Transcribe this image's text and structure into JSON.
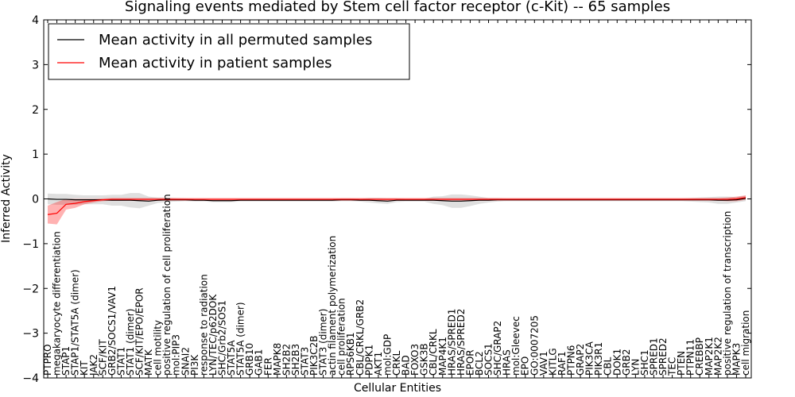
{
  "chart_data": {
    "type": "line",
    "title": "Signaling events mediated by Stem cell factor receptor (c-Kit) -- 65 samples",
    "xlabel": "Cellular Entities",
    "ylabel": "Inferred Activity",
    "ylim": [
      -4,
      4
    ],
    "yticks": [
      "4",
      "3",
      "2",
      "1",
      "0",
      "−1",
      "−2",
      "−3",
      "−4"
    ],
    "ytick_values": [
      4,
      3,
      2,
      1,
      0,
      -1,
      -2,
      -3,
      -4
    ],
    "legend_position": "top-left",
    "categories": [
      "PTPRO",
      "megakaryocyte differentiation",
      "STAP1",
      "STAP1/STAT5A (dimer)",
      "KIT",
      "JAK2",
      "SCF/KIT",
      "GRB2/SOCS1/VAV1",
      "STAT1",
      "STAT1 (dimer)",
      "SCF/KIT/EPO/EPOR",
      "MATK",
      "cell motility",
      "positive regulation of cell proliferation",
      "mol:PIP3",
      "SNAI2",
      "PI3K",
      "response to radiation",
      "LYN/TEC/p62DOK",
      "SHC/Grb2/SOS1",
      "STAT5A",
      "STAT5A (dimer)",
      "GRB10",
      "GAB1",
      "FER",
      "MAPK8",
      "SH2B2",
      "SH2B3",
      "STAT3",
      "PIK3C2B",
      "STAT3 (dimer)",
      "actin filament polymerization",
      "cell proliferation",
      "RPS6KB1",
      "CBL/CRKL/GRB2",
      "PDPK1",
      "AKT1",
      "mol:GDP",
      "CRKL",
      "BAD",
      "FOXO3",
      "GSK3B",
      "CBL/CRKL",
      "MAP4K1",
      "HRAS/SPRED1",
      "HRAS/SPRED2",
      "EPOR",
      "BCL2",
      "SOCS1",
      "SHC/GRAP2",
      "HRAS",
      "mol:Gleevec",
      "EPO",
      "GO:0007205",
      "VAV1",
      "KITLG",
      "RAF1",
      "PTPN6",
      "GRAP2",
      "PIK3CA",
      "PIK3R1",
      "CBL",
      "DOK1",
      "GRB2",
      "LYN",
      "SHC1",
      "SPRED1",
      "SPRED2",
      "TEC",
      "PTEN",
      "PTPN11",
      "CREBBP",
      "MAP2K1",
      "MAP2K2",
      "positive regulation of transcription",
      "MAPK3",
      "cell migration"
    ],
    "series": [
      {
        "name": "Mean activity in all permuted samples",
        "color": "#000000",
        "values": [
          0,
          -0.01,
          -0.01,
          -0.02,
          -0.02,
          -0.02,
          -0.02,
          -0.03,
          -0.03,
          -0.03,
          -0.04,
          -0.05,
          -0.03,
          -0.02,
          -0.02,
          -0.02,
          -0.03,
          -0.03,
          -0.04,
          -0.04,
          -0.04,
          -0.03,
          -0.03,
          -0.03,
          -0.03,
          -0.03,
          -0.03,
          -0.03,
          -0.03,
          -0.03,
          -0.03,
          -0.03,
          -0.02,
          -0.02,
          -0.03,
          -0.03,
          -0.04,
          -0.05,
          -0.03,
          -0.03,
          -0.03,
          -0.03,
          -0.03,
          -0.04,
          -0.05,
          -0.05,
          -0.04,
          -0.03,
          -0.03,
          -0.02,
          -0.02,
          -0.02,
          -0.02,
          -0.02,
          -0.02,
          -0.02,
          -0.02,
          -0.02,
          -0.02,
          -0.02,
          -0.02,
          -0.02,
          -0.02,
          -0.02,
          -0.02,
          -0.02,
          -0.02,
          -0.02,
          -0.02,
          -0.02,
          -0.02,
          -0.02,
          -0.02,
          -0.03,
          -0.03,
          -0.02,
          0.01
        ],
        "band": [
          0.12,
          0.12,
          0.12,
          0.11,
          0.1,
          0.1,
          0.1,
          0.12,
          0.12,
          0.16,
          0.17,
          0.1,
          0.06,
          0.05,
          0.04,
          0.03,
          0.03,
          0.03,
          0.03,
          0.03,
          0.03,
          0.03,
          0.03,
          0.03,
          0.03,
          0.03,
          0.03,
          0.03,
          0.03,
          0.03,
          0.03,
          0.03,
          0.03,
          0.03,
          0.03,
          0.05,
          0.06,
          0.06,
          0.04,
          0.03,
          0.03,
          0.03,
          0.08,
          0.1,
          0.15,
          0.15,
          0.12,
          0.08,
          0.05,
          0.04,
          0.03,
          0.03,
          0.03,
          0.03,
          0.03,
          0.03,
          0.03,
          0.03,
          0.03,
          0.03,
          0.03,
          0.03,
          0.03,
          0.03,
          0.03,
          0.03,
          0.03,
          0.03,
          0.03,
          0.03,
          0.04,
          0.05,
          0.06,
          0.08,
          0.08,
          0.06,
          0.06
        ]
      },
      {
        "name": "Mean activity in patient samples",
        "color": "#ff0000",
        "values": [
          -0.35,
          -0.32,
          -0.12,
          -0.1,
          -0.06,
          -0.04,
          -0.02,
          -0.01,
          -0.01,
          -0.01,
          -0.01,
          -0.01,
          -0.01,
          -0.01,
          -0.01,
          -0.01,
          -0.01,
          -0.01,
          -0.01,
          -0.01,
          -0.01,
          -0.01,
          -0.01,
          -0.01,
          -0.01,
          -0.01,
          -0.01,
          -0.01,
          -0.01,
          -0.01,
          -0.01,
          -0.01,
          -0.01,
          -0.01,
          -0.01,
          -0.01,
          -0.01,
          -0.01,
          -0.01,
          -0.01,
          -0.01,
          -0.01,
          -0.01,
          -0.01,
          -0.01,
          -0.01,
          -0.01,
          -0.01,
          -0.01,
          -0.01,
          -0.01,
          -0.01,
          -0.01,
          -0.01,
          -0.01,
          -0.01,
          -0.01,
          -0.01,
          -0.01,
          -0.01,
          -0.01,
          -0.01,
          -0.01,
          -0.01,
          -0.01,
          -0.01,
          -0.01,
          -0.01,
          -0.01,
          -0.01,
          -0.01,
          -0.01,
          -0.01,
          -0.01,
          -0.01,
          0.0,
          0.03
        ],
        "band": [
          0.2,
          0.25,
          0.12,
          0.1,
          0.06,
          0.04,
          0.03,
          0.03,
          0.03,
          0.03,
          0.03,
          0.03,
          0.03,
          0.03,
          0.03,
          0.03,
          0.03,
          0.03,
          0.03,
          0.03,
          0.03,
          0.03,
          0.03,
          0.03,
          0.03,
          0.03,
          0.03,
          0.03,
          0.03,
          0.03,
          0.03,
          0.03,
          0.03,
          0.03,
          0.03,
          0.03,
          0.03,
          0.03,
          0.03,
          0.03,
          0.03,
          0.03,
          0.03,
          0.03,
          0.03,
          0.03,
          0.03,
          0.03,
          0.03,
          0.03,
          0.03,
          0.03,
          0.03,
          0.03,
          0.03,
          0.03,
          0.03,
          0.03,
          0.03,
          0.03,
          0.03,
          0.03,
          0.03,
          0.03,
          0.03,
          0.03,
          0.03,
          0.03,
          0.03,
          0.03,
          0.03,
          0.03,
          0.03,
          0.03,
          0.04,
          0.05,
          0.05
        ]
      }
    ]
  }
}
